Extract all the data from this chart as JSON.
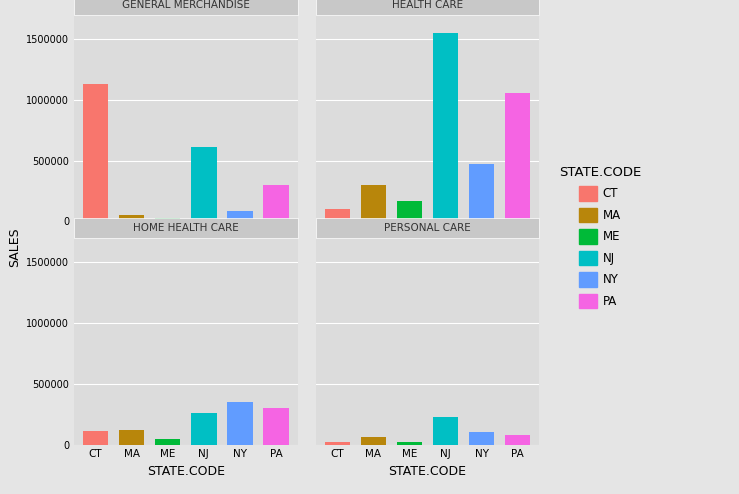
{
  "categories": [
    "CT",
    "MA",
    "ME",
    "NJ",
    "NY",
    "PA"
  ],
  "colors": {
    "CT": "#F8766D",
    "MA": "#B8860B",
    "ME": "#00BA38",
    "NJ": "#00BFC4",
    "NY": "#619CFF",
    "PA": "#F564E3"
  },
  "panels": {
    "GENERAL MERCHANDISE": {
      "CT": 1130000,
      "MA": 50000,
      "ME": 30000,
      "NJ": 610000,
      "NY": 90000,
      "PA": 300000
    },
    "HEALTH CARE": {
      "CT": 100000,
      "MA": 300000,
      "ME": 170000,
      "NJ": 1550000,
      "NY": 470000,
      "PA": 1060000
    },
    "HOME HEALTH CARE": {
      "CT": 115000,
      "MA": 120000,
      "ME": 50000,
      "NJ": 260000,
      "NY": 350000,
      "PA": 305000
    },
    "PERSONAL CARE": {
      "CT": 20000,
      "MA": 60000,
      "ME": 20000,
      "NJ": 230000,
      "NY": 100000,
      "PA": 80000
    }
  },
  "panel_order": [
    "GENERAL MERCHANDISE",
    "HEALTH CARE",
    "HOME HEALTH CARE",
    "PERSONAL CARE"
  ],
  "ylabel": "SALES",
  "xlabel": "STATE.CODE",
  "legend_title": "STATE.CODE",
  "figure_bg": "#E5E5E5",
  "panel_bg": "#DCDCDC",
  "strip_bg": "#C8C8C8",
  "grid_color": "#FFFFFF",
  "yticks": [
    0,
    500000,
    1000000,
    1500000
  ],
  "ylim": [
    0,
    1700000
  ]
}
